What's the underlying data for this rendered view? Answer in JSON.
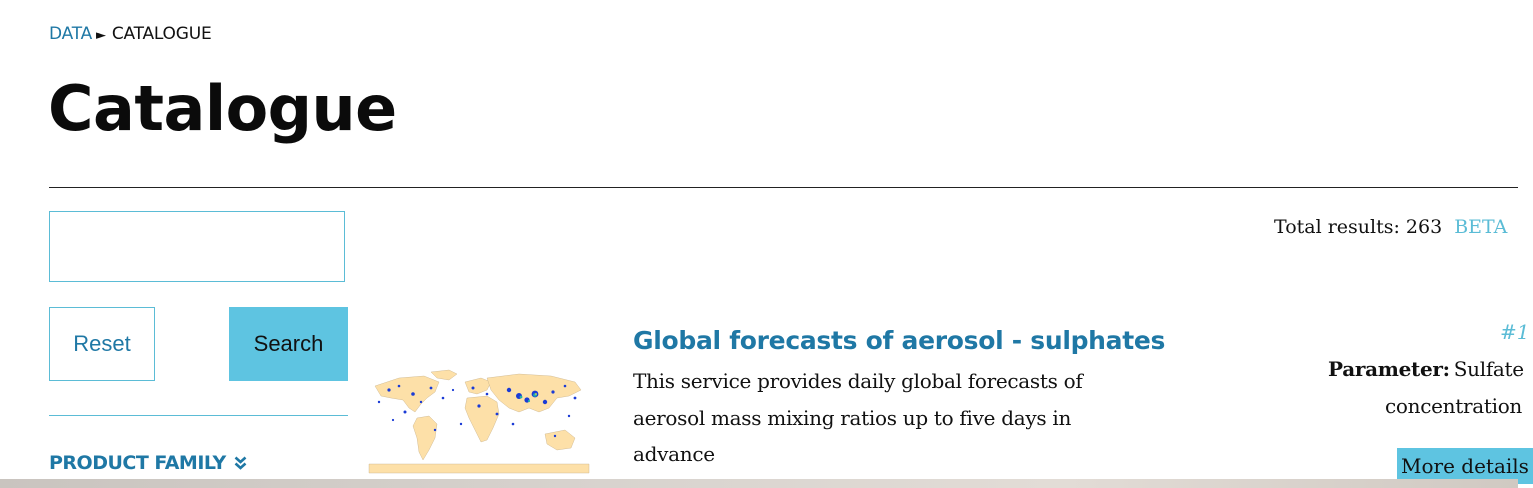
{
  "breadcrumb": {
    "data_label": "DATA",
    "separator": "►",
    "current": "CATALOGUE"
  },
  "page": {
    "title": "Catalogue"
  },
  "search": {
    "value": "",
    "placeholder": ""
  },
  "buttons": {
    "reset": "Reset",
    "search": "Search"
  },
  "facets": {
    "product_family": "PRODUCT FAMILY",
    "chevron": "❯❯"
  },
  "results": {
    "total_label": "Total results: 263",
    "beta": "BETA",
    "items": [
      {
        "title": "Global forecasts of aerosol - sulphates",
        "description": "This service provides daily global forecasts of aerosol mass mixing ratios up to five days in advance",
        "id": "#1",
        "parameter_label": "Parameter:",
        "parameter_value": "Sulfate",
        "parameter_value_line2": "concentration",
        "more_details": "More details",
        "thumbnail_icon": "world-map-thumbnail"
      }
    ]
  },
  "colors": {
    "link": "#1f78a5",
    "accent": "#5ec4e1",
    "border": "#5bbcd6",
    "map_land": "#fde0a8",
    "map_data": "#1a3bd6"
  }
}
